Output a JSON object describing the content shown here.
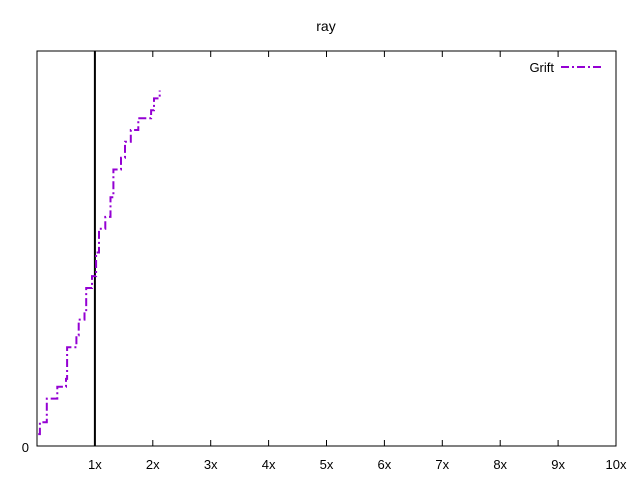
{
  "chart_data": {
    "type": "line",
    "title": "ray",
    "xlabel": "",
    "ylabel": "",
    "xlim": [
      0,
      10
    ],
    "ylim": [
      0,
      1
    ],
    "x_ticks": [
      {
        "value": 1,
        "label": "1x"
      },
      {
        "value": 2,
        "label": "2x"
      },
      {
        "value": 3,
        "label": "3x"
      },
      {
        "value": 4,
        "label": "4x"
      },
      {
        "value": 5,
        "label": "5x"
      },
      {
        "value": 6,
        "label": "6x"
      },
      {
        "value": 7,
        "label": "7x"
      },
      {
        "value": 8,
        "label": "8x"
      },
      {
        "value": 9,
        "label": "9x"
      },
      {
        "value": 10,
        "label": "10x"
      }
    ],
    "y_ticks": [
      {
        "value": 0,
        "label": "0"
      }
    ],
    "reference_line": {
      "x": 1,
      "color": "#000000"
    },
    "grid": false,
    "legend_position": "top-right",
    "series": [
      {
        "name": "Grift",
        "color": "#9400d3",
        "dash": "dash-dot",
        "points": [
          [
            0.02,
            0.03
          ],
          [
            0.05,
            0.06
          ],
          [
            0.17,
            0.12
          ],
          [
            0.35,
            0.15
          ],
          [
            0.5,
            0.17
          ],
          [
            0.52,
            0.25
          ],
          [
            0.68,
            0.28
          ],
          [
            0.72,
            0.32
          ],
          [
            0.82,
            0.34
          ],
          [
            0.85,
            0.4
          ],
          [
            0.95,
            0.43
          ],
          [
            1.02,
            0.49
          ],
          [
            1.07,
            0.55
          ],
          [
            1.18,
            0.58
          ],
          [
            1.27,
            0.63
          ],
          [
            1.32,
            0.7
          ],
          [
            1.45,
            0.73
          ],
          [
            1.52,
            0.77
          ],
          [
            1.62,
            0.8
          ],
          [
            1.75,
            0.83
          ],
          [
            1.97,
            0.85
          ],
          [
            2.02,
            0.88
          ],
          [
            2.12,
            0.9
          ]
        ]
      }
    ]
  }
}
